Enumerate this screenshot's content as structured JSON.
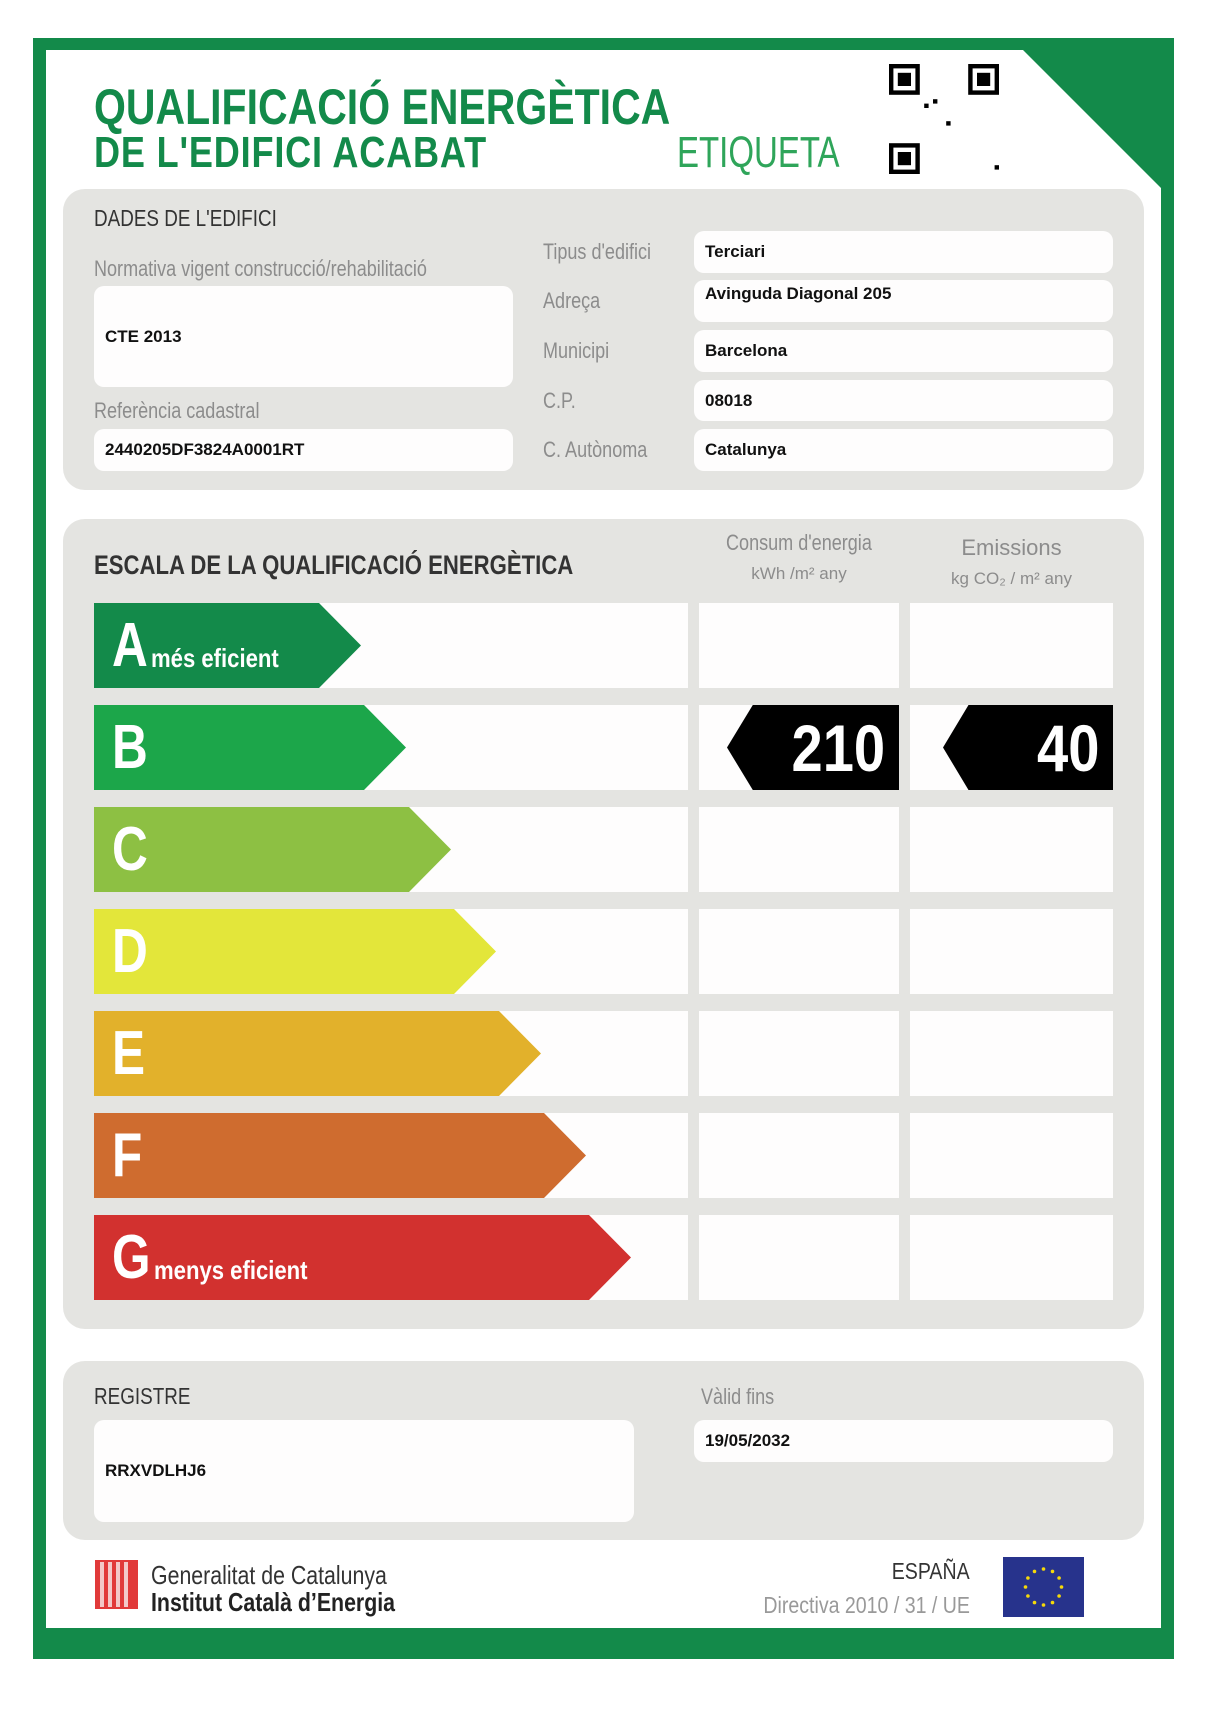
{
  "header": {
    "title_line1": "QUALIFICACIÓ ENERGÈTICA",
    "title_line2": "DE L'EDIFICI ACABAT",
    "label": "ETIQUETA",
    "brand_color": "#138a4a"
  },
  "building": {
    "section_title": "DADES DE L'EDIFICI",
    "normativa_label": "Normativa vigent construcció/rehabilitació",
    "normativa_value": "CTE 2013",
    "cadastral_label": "Referència cadastral",
    "cadastral_value": "2440205DF3824A0001RT",
    "fields": [
      {
        "label": "Tipus d'edifici",
        "value": "Terciari"
      },
      {
        "label": "Adreça",
        "value": "Avinguda Diagonal 205"
      },
      {
        "label": "Municipi",
        "value": "Barcelona"
      },
      {
        "label": "C.P.",
        "value": "08018"
      },
      {
        "label": "C. Autònoma",
        "value": "Catalunya"
      }
    ]
  },
  "scale": {
    "section_title": "ESCALA DE LA QUALIFICACIÓ ENERGÈTICA",
    "energy_header": "Consum d'energia",
    "energy_unit": "kWh /m² any",
    "emissions_header": "Emissions",
    "emissions_unit": "kg CO₂ / m² any",
    "rating": "B",
    "energy_value": "210",
    "emissions_value": "40",
    "classes": [
      {
        "letter": "A",
        "sub": "més eficient",
        "color": "#138a4a"
      },
      {
        "letter": "B",
        "sub": "",
        "color": "#1ca64a"
      },
      {
        "letter": "C",
        "sub": "",
        "color": "#8dc043"
      },
      {
        "letter": "D",
        "sub": "",
        "color": "#e3e63a"
      },
      {
        "letter": "E",
        "sub": "",
        "color": "#e2b12b"
      },
      {
        "letter": "F",
        "sub": "",
        "color": "#cf6c2f"
      },
      {
        "letter": "G",
        "sub": "menys eficient",
        "color": "#d2312f"
      }
    ]
  },
  "registry": {
    "label": "REGISTRE",
    "value": "RRXVDLHJ6",
    "valid_label": "Vàlid fins",
    "valid_value": "19/05/2032"
  },
  "footer": {
    "org_line1": "Generalitat de Catalunya",
    "org_line2": "Institut Català d’Energia",
    "country": "ESPAÑA",
    "directive": "Directiva 2010 / 31 / UE"
  }
}
